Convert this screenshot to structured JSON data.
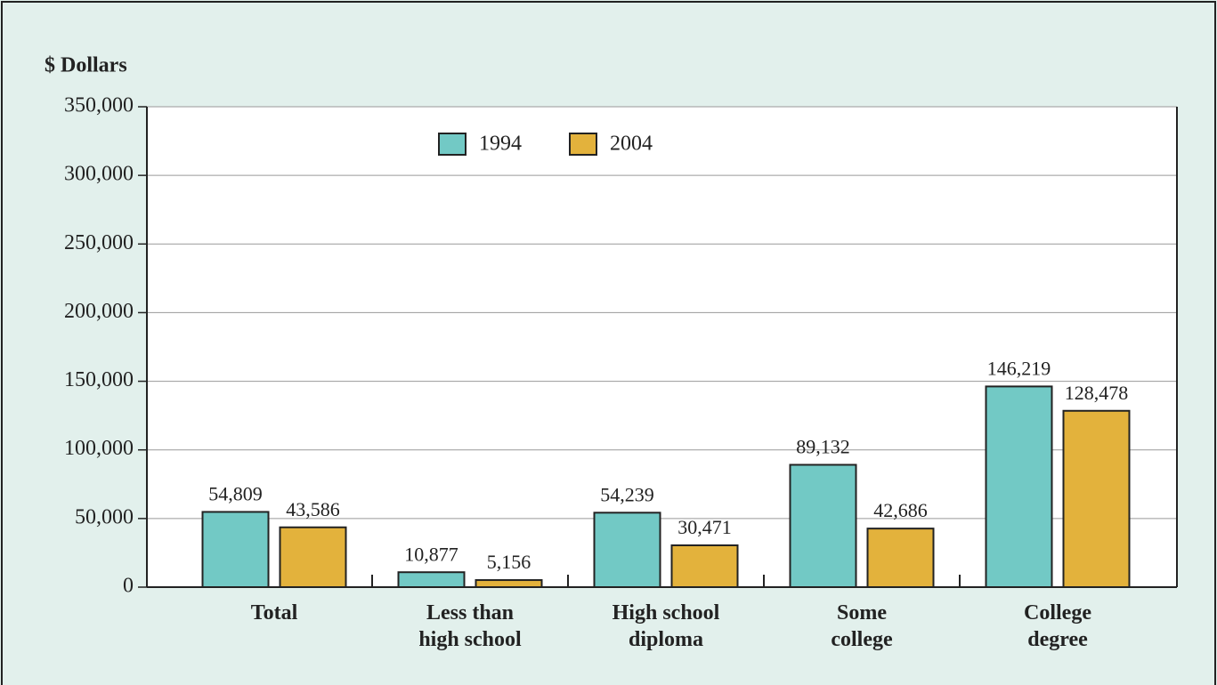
{
  "chart_data": {
    "type": "bar",
    "title": "$ Dollars",
    "categories": [
      "Total",
      "Less than\nhigh school",
      "High school\ndiploma",
      "Some\ncollege",
      "College\ndegree"
    ],
    "series": [
      {
        "name": "1994",
        "color": "#72c9c5",
        "values": [
          54809,
          10877,
          54239,
          89132,
          146219
        ],
        "value_labels": [
          "54,809",
          "10,877",
          "54,239",
          "89,132",
          "146,219"
        ]
      },
      {
        "name": "2004",
        "color": "#e3b23c",
        "values": [
          43586,
          5156,
          30471,
          42686,
          128478
        ],
        "value_labels": [
          "43,586",
          "5,156",
          "30,471",
          "42,686",
          "128,478"
        ]
      }
    ],
    "ylim": [
      0,
      350000
    ],
    "yticks": [
      {
        "value": 0,
        "label": "0"
      },
      {
        "value": 50000,
        "label": "50,000"
      },
      {
        "value": 100000,
        "label": "100,000"
      },
      {
        "value": 150000,
        "label": "150,000"
      },
      {
        "value": 200000,
        "label": "200,000"
      },
      {
        "value": 250000,
        "label": "250,000"
      },
      {
        "value": 300000,
        "label": "300,000"
      },
      {
        "value": 350000,
        "label": "350,000"
      }
    ],
    "grid": true,
    "legend": "top"
  }
}
